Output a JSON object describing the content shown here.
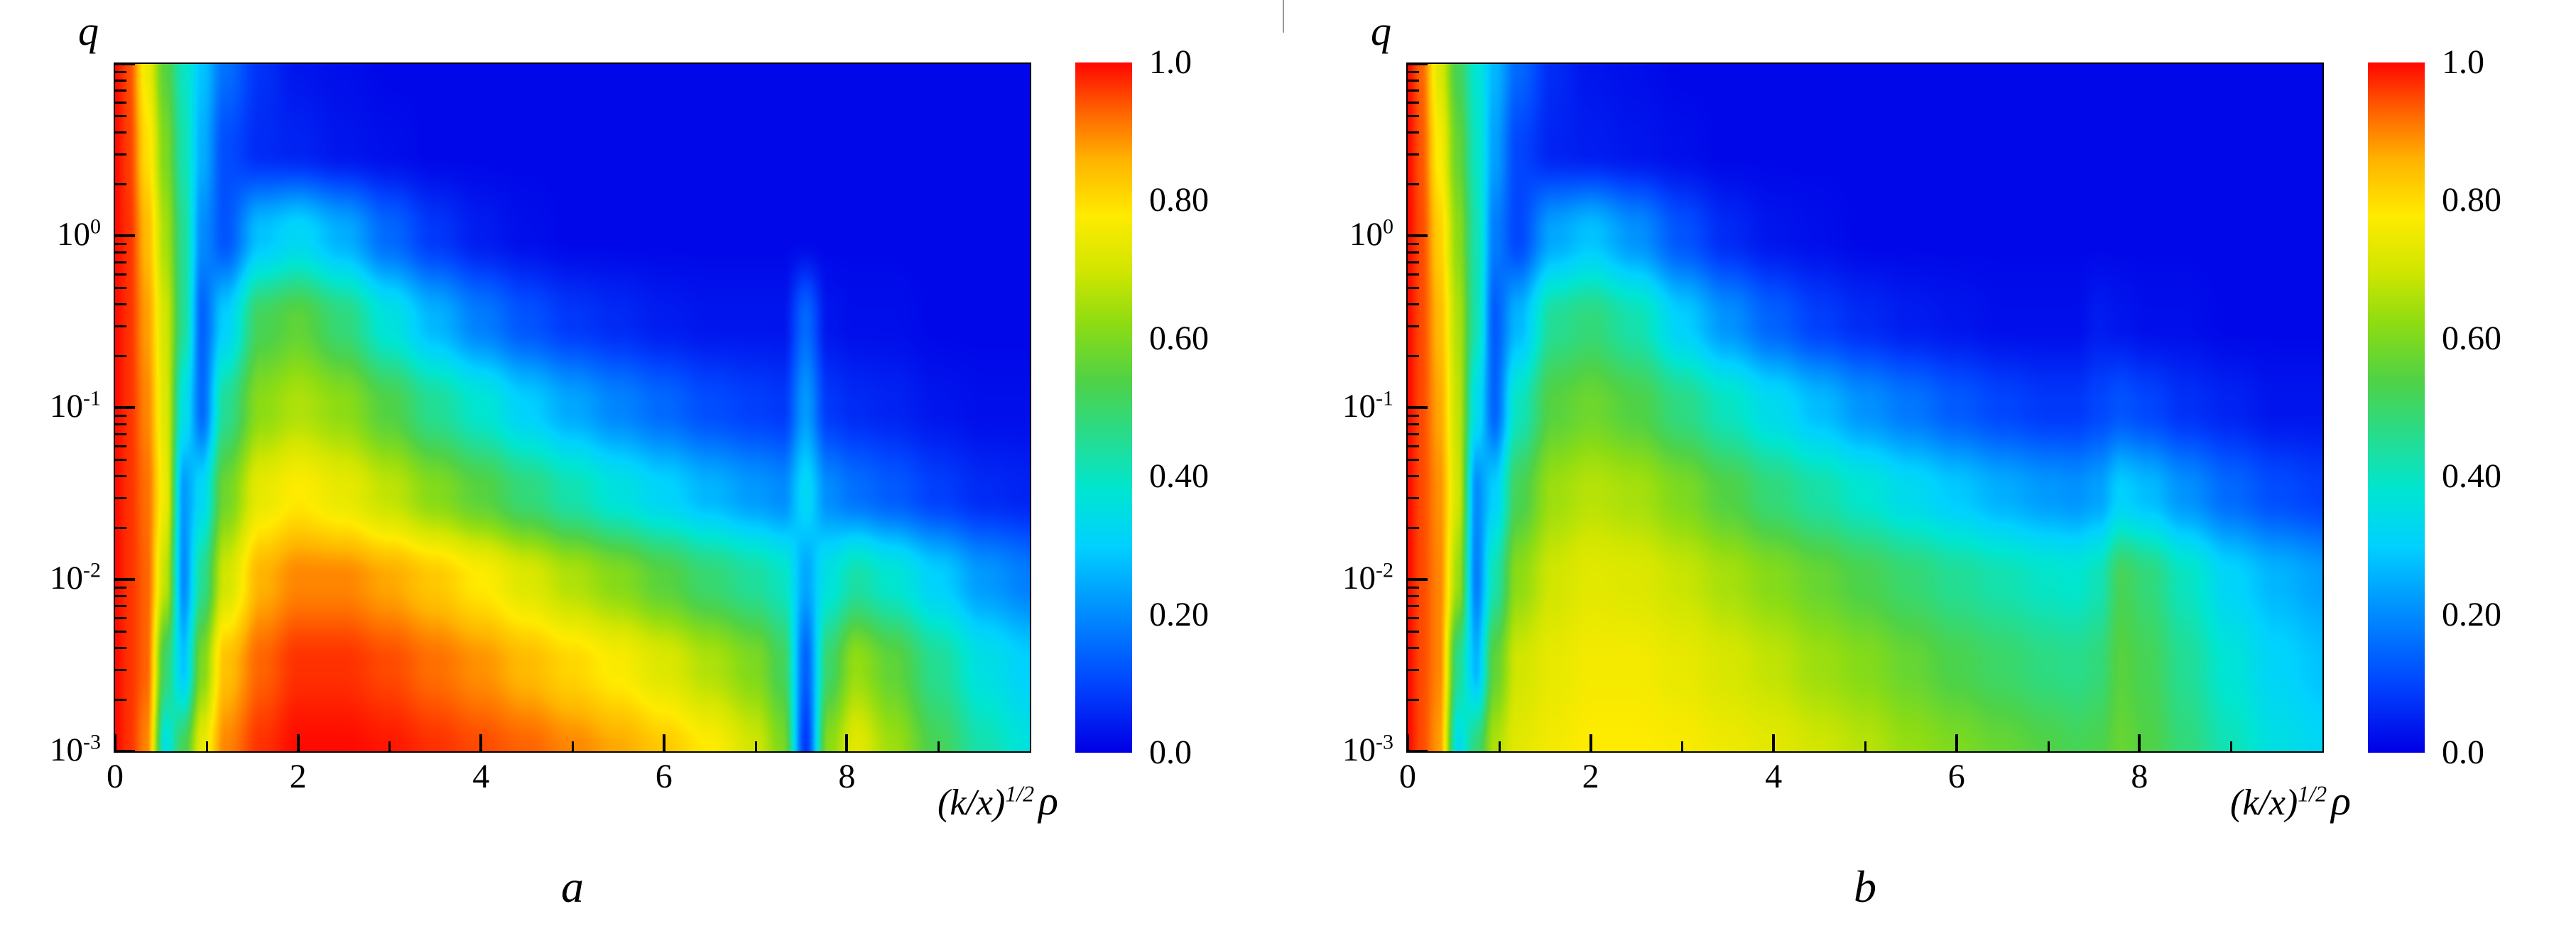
{
  "figure": {
    "background": "#ffffff"
  },
  "chart_data": {
    "type": "heatmap",
    "x_axis": {
      "label_prefix": "(k/x)",
      "label_exponent": "1/2",
      "label_suffix": "ρ",
      "range": [
        0,
        10
      ],
      "major_ticks": [
        0,
        2,
        4,
        6,
        8
      ],
      "minor_ticks": [
        1,
        3,
        5,
        7,
        9
      ],
      "tick_labels": [
        "0",
        "2",
        "4",
        "6",
        "8"
      ]
    },
    "y_axis": {
      "label": "q",
      "scale": "log",
      "range_log10": [
        -3,
        1
      ],
      "tick_mantissa": "10",
      "major_tick_exponents": [
        0,
        -1,
        -2,
        -3
      ]
    },
    "colorbar": {
      "range": [
        0,
        1
      ],
      "tick_labels": [
        "1.0",
        "0.80",
        "0.60",
        "0.40",
        "0.20",
        "0.0"
      ]
    },
    "colormap_stops": [
      [
        0.0,
        0,
        0,
        230
      ],
      [
        0.1,
        0,
        70,
        255
      ],
      [
        0.2,
        0,
        140,
        255
      ],
      [
        0.3,
        0,
        210,
        255
      ],
      [
        0.38,
        0,
        230,
        210
      ],
      [
        0.46,
        40,
        220,
        140
      ],
      [
        0.54,
        80,
        210,
        70
      ],
      [
        0.62,
        140,
        220,
        20
      ],
      [
        0.7,
        210,
        230,
        0
      ],
      [
        0.78,
        255,
        235,
        0
      ],
      [
        0.86,
        255,
        180,
        0
      ],
      [
        0.93,
        255,
        100,
        0
      ],
      [
        1.0,
        255,
        10,
        0
      ]
    ],
    "grid_x": [
      0,
      0.15,
      0.35,
      0.55,
      0.75,
      0.95,
      1.2,
      1.6,
      2,
      2.5,
      3,
      3.5,
      4,
      4.5,
      5,
      5.5,
      6,
      6.5,
      7,
      7.3,
      7.55,
      7.8,
      8.1,
      8.5,
      9,
      9.5,
      10
    ],
    "grid_logq": [
      1,
      0.5,
      0,
      -0.5,
      -1,
      -1.5,
      -2,
      -2.5,
      -3
    ],
    "panels": [
      {
        "label": "a",
        "values": [
          [
            1.0,
            0.95,
            0.75,
            0.55,
            0.4,
            0.28,
            0.16,
            0.07,
            0.03,
            0.02,
            0.01,
            0.01,
            0.01,
            0.01,
            0.01,
            0.01,
            0.01,
            0.01,
            0.01,
            0.01,
            0.01,
            0.01,
            0.01,
            0.01,
            0.01,
            0.01,
            0.01
          ],
          [
            1.0,
            0.96,
            0.8,
            0.6,
            0.42,
            0.25,
            0.11,
            0.06,
            0.05,
            0.03,
            0.02,
            0.01,
            0.01,
            0.01,
            0.01,
            0.01,
            0.01,
            0.01,
            0.01,
            0.01,
            0.01,
            0.01,
            0.01,
            0.01,
            0.01,
            0.01,
            0.01
          ],
          [
            1.0,
            0.97,
            0.85,
            0.65,
            0.45,
            0.2,
            0.12,
            0.28,
            0.32,
            0.25,
            0.15,
            0.08,
            0.04,
            0.02,
            0.01,
            0.01,
            0.01,
            0.01,
            0.01,
            0.01,
            0.01,
            0.01,
            0.01,
            0.01,
            0.01,
            0.01,
            0.01
          ],
          [
            1.0,
            0.97,
            0.88,
            0.7,
            0.45,
            0.14,
            0.3,
            0.52,
            0.56,
            0.48,
            0.36,
            0.26,
            0.18,
            0.12,
            0.08,
            0.06,
            0.04,
            0.03,
            0.03,
            0.03,
            0.15,
            0.03,
            0.02,
            0.02,
            0.01,
            0.01,
            0.01
          ],
          [
            1.0,
            0.97,
            0.9,
            0.72,
            0.35,
            0.15,
            0.45,
            0.62,
            0.66,
            0.62,
            0.54,
            0.45,
            0.38,
            0.3,
            0.24,
            0.19,
            0.15,
            0.11,
            0.09,
            0.08,
            0.22,
            0.08,
            0.06,
            0.05,
            0.03,
            0.02,
            0.02
          ],
          [
            1.0,
            0.97,
            0.92,
            0.75,
            0.22,
            0.32,
            0.58,
            0.74,
            0.78,
            0.74,
            0.68,
            0.61,
            0.55,
            0.48,
            0.42,
            0.36,
            0.31,
            0.26,
            0.22,
            0.2,
            0.32,
            0.2,
            0.16,
            0.13,
            0.09,
            0.06,
            0.05
          ],
          [
            1.0,
            0.97,
            0.93,
            0.68,
            0.2,
            0.45,
            0.7,
            0.86,
            0.9,
            0.9,
            0.87,
            0.83,
            0.78,
            0.72,
            0.66,
            0.61,
            0.55,
            0.49,
            0.44,
            0.4,
            0.24,
            0.36,
            0.43,
            0.38,
            0.3,
            0.22,
            0.18
          ],
          [
            1.0,
            0.97,
            0.93,
            0.5,
            0.28,
            0.6,
            0.84,
            0.93,
            0.97,
            0.97,
            0.95,
            0.92,
            0.89,
            0.85,
            0.81,
            0.77,
            0.72,
            0.66,
            0.6,
            0.52,
            0.14,
            0.5,
            0.63,
            0.56,
            0.45,
            0.35,
            0.3
          ],
          [
            1.0,
            0.97,
            0.9,
            0.35,
            0.52,
            0.74,
            0.9,
            0.97,
            1.0,
            1.0,
            0.99,
            0.97,
            0.95,
            0.93,
            0.9,
            0.87,
            0.83,
            0.78,
            0.7,
            0.6,
            0.08,
            0.62,
            0.73,
            0.64,
            0.52,
            0.42,
            0.36
          ]
        ]
      },
      {
        "label": "b",
        "values": [
          [
            1.0,
            0.93,
            0.72,
            0.52,
            0.38,
            0.26,
            0.15,
            0.06,
            0.03,
            0.02,
            0.01,
            0.01,
            0.01,
            0.01,
            0.01,
            0.01,
            0.01,
            0.01,
            0.01,
            0.01,
            0.01,
            0.01,
            0.01,
            0.01,
            0.01,
            0.01,
            0.01
          ],
          [
            1.0,
            0.94,
            0.77,
            0.57,
            0.4,
            0.23,
            0.1,
            0.05,
            0.04,
            0.03,
            0.02,
            0.01,
            0.01,
            0.01,
            0.01,
            0.01,
            0.01,
            0.01,
            0.01,
            0.01,
            0.01,
            0.01,
            0.01,
            0.01,
            0.01,
            0.01,
            0.01
          ],
          [
            1.0,
            0.95,
            0.82,
            0.62,
            0.42,
            0.18,
            0.1,
            0.24,
            0.28,
            0.21,
            0.12,
            0.06,
            0.03,
            0.02,
            0.01,
            0.01,
            0.01,
            0.01,
            0.01,
            0.01,
            0.01,
            0.01,
            0.01,
            0.01,
            0.01,
            0.01,
            0.01
          ],
          [
            1.0,
            0.95,
            0.85,
            0.66,
            0.42,
            0.13,
            0.26,
            0.45,
            0.48,
            0.42,
            0.3,
            0.21,
            0.14,
            0.09,
            0.06,
            0.04,
            0.03,
            0.02,
            0.02,
            0.02,
            0.04,
            0.03,
            0.02,
            0.02,
            0.01,
            0.01,
            0.01
          ],
          [
            1.0,
            0.95,
            0.87,
            0.68,
            0.34,
            0.14,
            0.4,
            0.55,
            0.58,
            0.54,
            0.47,
            0.4,
            0.33,
            0.27,
            0.21,
            0.17,
            0.13,
            0.1,
            0.08,
            0.08,
            0.1,
            0.12,
            0.1,
            0.07,
            0.05,
            0.03,
            0.03
          ],
          [
            1.0,
            0.95,
            0.89,
            0.7,
            0.2,
            0.3,
            0.52,
            0.64,
            0.67,
            0.65,
            0.6,
            0.54,
            0.48,
            0.43,
            0.38,
            0.33,
            0.29,
            0.25,
            0.22,
            0.21,
            0.23,
            0.3,
            0.27,
            0.21,
            0.15,
            0.11,
            0.09
          ],
          [
            1.0,
            0.95,
            0.9,
            0.64,
            0.18,
            0.42,
            0.62,
            0.7,
            0.73,
            0.72,
            0.69,
            0.65,
            0.61,
            0.57,
            0.53,
            0.49,
            0.45,
            0.42,
            0.39,
            0.38,
            0.41,
            0.52,
            0.48,
            0.4,
            0.31,
            0.26,
            0.23
          ],
          [
            1.0,
            0.95,
            0.9,
            0.46,
            0.26,
            0.56,
            0.7,
            0.74,
            0.76,
            0.76,
            0.74,
            0.71,
            0.68,
            0.64,
            0.61,
            0.57,
            0.53,
            0.5,
            0.47,
            0.46,
            0.48,
            0.55,
            0.52,
            0.45,
            0.37,
            0.31,
            0.28
          ],
          [
            1.0,
            0.95,
            0.88,
            0.33,
            0.48,
            0.66,
            0.73,
            0.76,
            0.78,
            0.78,
            0.77,
            0.75,
            0.73,
            0.7,
            0.67,
            0.63,
            0.6,
            0.57,
            0.54,
            0.52,
            0.53,
            0.57,
            0.54,
            0.48,
            0.41,
            0.35,
            0.32
          ]
        ]
      }
    ]
  }
}
